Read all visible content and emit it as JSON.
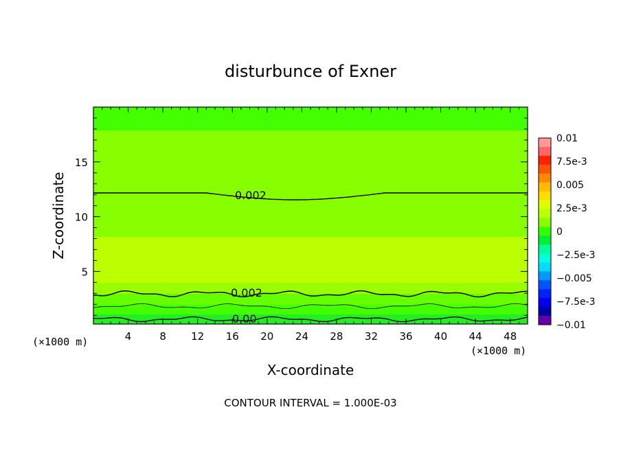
{
  "chart_data": {
    "type": "contour",
    "title": "disturbunce of Exner",
    "xlabel": "X-coordinate",
    "ylabel": "Z-coordinate",
    "x_unit": "(×1000 m)",
    "x_ticks": [
      "4",
      "8",
      "12",
      "16",
      "20",
      "24",
      "28",
      "32",
      "36",
      "40",
      "44",
      "48"
    ],
    "x_tick_values": [
      4,
      8,
      12,
      16,
      20,
      24,
      28,
      32,
      36,
      40,
      44,
      48
    ],
    "y_ticks": [
      "5",
      "10",
      "15"
    ],
    "y_tick_values": [
      5,
      10,
      15
    ],
    "xlim": [
      0,
      50
    ],
    "ylim": [
      0.2,
      20
    ],
    "footer": "CONTOUR INTERVAL = 1.000E-03",
    "contour_labels": [
      "0.002",
      "0.002",
      "0.00"
    ],
    "colorbar": {
      "labels": [
        "0.01",
        "7.5e-3",
        "0.005",
        "2.5e-3",
        "0",
        "−2.5e-3",
        "−0.005",
        "−7.5e-3",
        "−0.01"
      ],
      "label_values": [
        0.01,
        0.0075,
        0.005,
        0.0025,
        0,
        -0.0025,
        -0.005,
        -0.0075,
        -0.01
      ],
      "colors_top_to_bottom": [
        "#ff9999",
        "#ff6666",
        "#ff2200",
        "#ff5500",
        "#ff8800",
        "#ffbb00",
        "#ffdd00",
        "#ddff00",
        "#bbff00",
        "#88ff00",
        "#33ff00",
        "#00ee33",
        "#00ff99",
        "#00ffdd",
        "#00ddff",
        "#0099ff",
        "#0055ff",
        "#0022ff",
        "#0000ee",
        "#0000aa",
        "#6600aa"
      ]
    },
    "layer_colors": [
      "#33ee11",
      "#55ff00",
      "#77ff00",
      "#99ff00",
      "#bbff00",
      "#99ff00",
      "#55ff00",
      "#33ee11",
      "#00e644"
    ]
  }
}
